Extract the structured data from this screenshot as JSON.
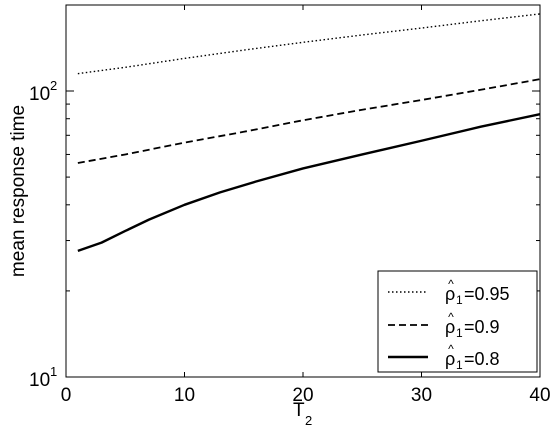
{
  "chart_data": {
    "type": "line",
    "title": "",
    "xlabel": {
      "main": "T",
      "sub": "2"
    },
    "ylabel": "mean response time",
    "xlim": [
      0,
      40
    ],
    "ylim": [
      10,
      200
    ],
    "yscale": "log",
    "xticks": [
      0,
      10,
      20,
      30,
      40
    ],
    "yticks": [
      {
        "value": 10,
        "base": "10",
        "exp": "1"
      },
      {
        "value": 100,
        "base": "10",
        "exp": "2"
      }
    ],
    "grid": false,
    "legend": {
      "position": "bottom-right",
      "symbol": "ρ",
      "accent": "^",
      "sub": "1"
    },
    "series": [
      {
        "name": "=0.95",
        "style": "dotted",
        "x": [
          1,
          5,
          10,
          15,
          20,
          25,
          30,
          35,
          40
        ],
        "y": [
          115,
          121,
          130,
          139,
          148,
          157,
          166,
          176,
          186
        ]
      },
      {
        "name": "=0.9",
        "style": "dashed",
        "x": [
          1,
          5,
          10,
          15,
          20,
          25,
          30,
          35,
          40
        ],
        "y": [
          56,
          60,
          66,
          72,
          79,
          86,
          93,
          101,
          110
        ]
      },
      {
        "name": "=0.8",
        "style": "solid",
        "x": [
          1,
          3,
          5,
          7,
          10,
          13,
          16,
          20,
          25,
          30,
          35,
          40
        ],
        "y": [
          27.6,
          29.5,
          32.4,
          35.5,
          40.0,
          44.2,
          48.2,
          53.6,
          60.0,
          67.0,
          75.0,
          83.0
        ]
      }
    ]
  }
}
